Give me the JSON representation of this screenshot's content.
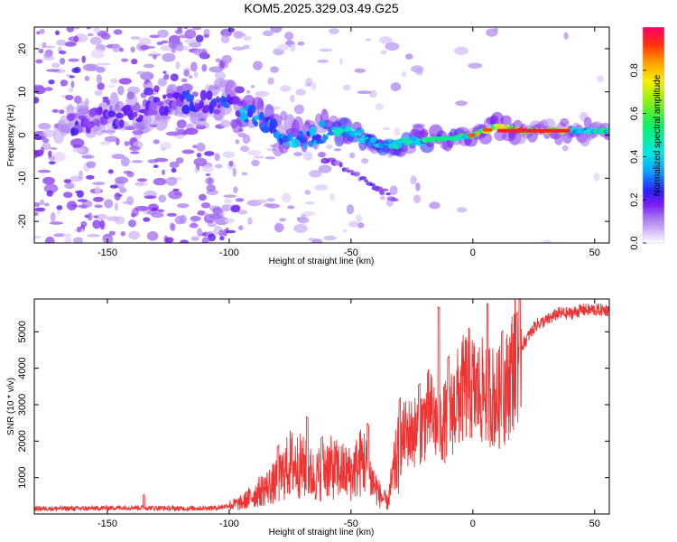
{
  "title": "KOM5.2025.329.03.49.G25",
  "chart_data": [
    {
      "type": "heatmap",
      "name": "spectrogram",
      "xlabel": "Height of straight line (km)",
      "ylabel": "Frequency (Hz)",
      "xlim": [
        -180,
        56
      ],
      "ylim": [
        -25,
        25
      ],
      "x_ticks": [
        -150,
        -100,
        -50,
        0,
        50
      ],
      "y_ticks": [
        -20,
        -10,
        0,
        10,
        20
      ],
      "colorbar": {
        "label": "Normalized spectral amplitude",
        "range": [
          0,
          1
        ],
        "ticks": [
          0.0,
          0.2,
          0.4,
          0.6,
          0.8
        ]
      },
      "ridge_frequency_by_height": [
        {
          "x": -160,
          "y": 3
        },
        {
          "x": -140,
          "y": 5
        },
        {
          "x": -120,
          "y": 8
        },
        {
          "x": -100,
          "y": 7
        },
        {
          "x": -90,
          "y": 4
        },
        {
          "x": -80,
          "y": 0
        },
        {
          "x": -70,
          "y": -1
        },
        {
          "x": -60,
          "y": 1
        },
        {
          "x": -50,
          "y": 1
        },
        {
          "x": -40,
          "y": -2
        },
        {
          "x": -30,
          "y": -2
        },
        {
          "x": -20,
          "y": -1
        },
        {
          "x": -10,
          "y": -1
        },
        {
          "x": 0,
          "y": 0
        },
        {
          "x": 10,
          "y": 2
        },
        {
          "x": 20,
          "y": 1
        },
        {
          "x": 56,
          "y": 1
        }
      ]
    },
    {
      "type": "line",
      "name": "snr",
      "xlabel": "Height of straight line (km)",
      "ylabel": "SNR (10 * v/v)",
      "xlim": [
        -180,
        56
      ],
      "ylim": [
        0,
        5900
      ],
      "x_ticks": [
        -150,
        -100,
        -50,
        0,
        50
      ],
      "y_ticks": [
        1000,
        2000,
        3000,
        4000,
        5000
      ],
      "series": [
        {
          "name": "SNR",
          "color": "#ee3333",
          "points": [
            {
              "x": -180,
              "y": 150
            },
            {
              "x": -160,
              "y": 150
            },
            {
              "x": -140,
              "y": 180
            },
            {
              "x": -120,
              "y": 150
            },
            {
              "x": -105,
              "y": 170
            },
            {
              "x": -95,
              "y": 300
            },
            {
              "x": -88,
              "y": 600
            },
            {
              "x": -80,
              "y": 900
            },
            {
              "x": -75,
              "y": 1400
            },
            {
              "x": -70,
              "y": 1300
            },
            {
              "x": -65,
              "y": 1000
            },
            {
              "x": -60,
              "y": 1300
            },
            {
              "x": -55,
              "y": 1200
            },
            {
              "x": -50,
              "y": 1100
            },
            {
              "x": -45,
              "y": 1500
            },
            {
              "x": -42,
              "y": 1000
            },
            {
              "x": -38,
              "y": 500
            },
            {
              "x": -35,
              "y": 300
            },
            {
              "x": -32,
              "y": 1300
            },
            {
              "x": -28,
              "y": 2200
            },
            {
              "x": -22,
              "y": 2300
            },
            {
              "x": -18,
              "y": 2800
            },
            {
              "x": -14,
              "y": 2400
            },
            {
              "x": -10,
              "y": 2600
            },
            {
              "x": -6,
              "y": 3200
            },
            {
              "x": -2,
              "y": 3600
            },
            {
              "x": 2,
              "y": 3300
            },
            {
              "x": 6,
              "y": 3400
            },
            {
              "x": 10,
              "y": 3100
            },
            {
              "x": 14,
              "y": 3500
            },
            {
              "x": 18,
              "y": 4400
            },
            {
              "x": 22,
              "y": 4800
            },
            {
              "x": 26,
              "y": 5200
            },
            {
              "x": 30,
              "y": 5300
            },
            {
              "x": 35,
              "y": 5500
            },
            {
              "x": 40,
              "y": 5500
            },
            {
              "x": 45,
              "y": 5600
            },
            {
              "x": 50,
              "y": 5600
            },
            {
              "x": 56,
              "y": 5600
            }
          ],
          "spikes": [
            {
              "x": -135,
              "y": 520
            },
            {
              "x": -80,
              "y": 1850
            },
            {
              "x": -68,
              "y": 2650
            },
            {
              "x": -62,
              "y": 2100
            },
            {
              "x": -43,
              "y": 2450
            },
            {
              "x": -30,
              "y": 3150
            },
            {
              "x": -22,
              "y": 3550
            },
            {
              "x": -14,
              "y": 5650
            },
            {
              "x": -10,
              "y": 4300
            },
            {
              "x": 6,
              "y": 5780
            },
            {
              "x": 12,
              "y": 5000
            },
            {
              "x": 18,
              "y": 5500
            }
          ]
        }
      ]
    }
  ]
}
